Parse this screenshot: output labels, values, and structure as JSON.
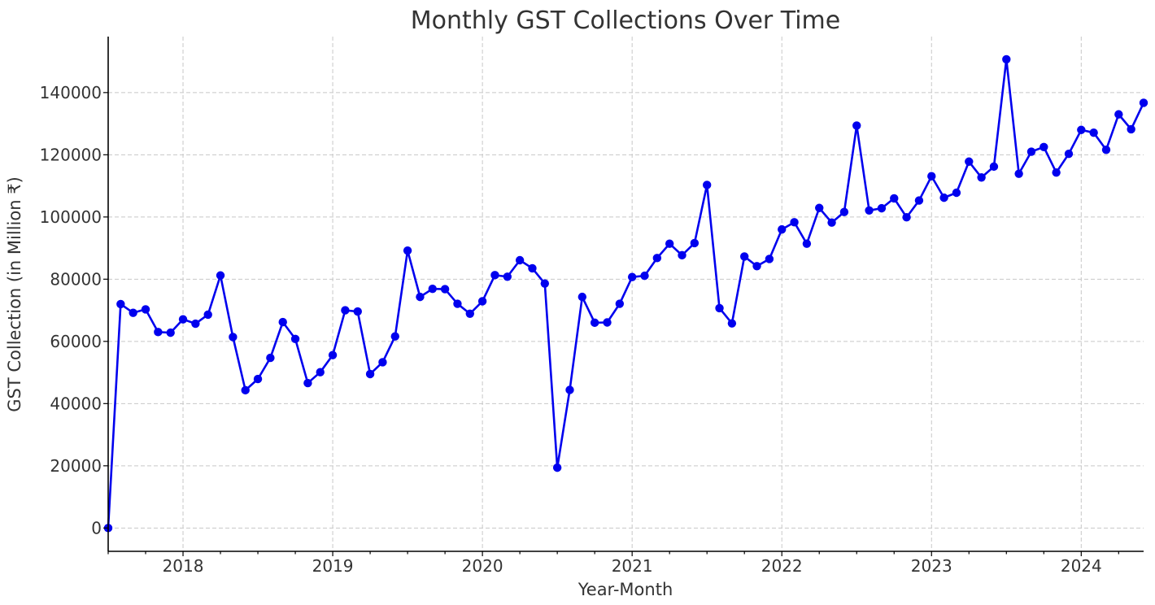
{
  "chart_data": {
    "type": "line",
    "title": "Monthly GST Collections Over Time",
    "xlabel": "Year-Month",
    "ylabel": "GST Collection (in Million ₹)",
    "x_range": [
      "2017-07",
      "2024-06"
    ],
    "ylim": [
      -7500,
      158000
    ],
    "y_ticks": [
      "0",
      "20000",
      "40000",
      "60000",
      "80000",
      "100000",
      "120000",
      "140000"
    ],
    "x_ticks": [
      "2018",
      "2019",
      "2020",
      "2021",
      "2022",
      "2023",
      "2024"
    ],
    "grid": true,
    "marker": "circle",
    "color": "#0000ee",
    "series": [
      {
        "x": [
          "2017-07",
          "2017-08",
          "2017-09",
          "2017-10",
          "2017-11",
          "2017-12",
          "2018-01",
          "2018-02",
          "2018-03",
          "2018-04",
          "2018-05",
          "2018-06",
          "2018-07",
          "2018-08",
          "2018-09",
          "2018-10",
          "2018-11",
          "2018-12",
          "2019-01",
          "2019-02",
          "2019-03",
          "2019-04",
          "2019-05",
          "2019-06",
          "2019-07",
          "2019-08",
          "2019-09",
          "2019-10",
          "2019-11",
          "2019-12",
          "2020-01",
          "2020-02",
          "2020-03",
          "2020-04",
          "2020-05",
          "2020-06",
          "2020-07",
          "2020-08",
          "2020-09",
          "2020-10",
          "2020-11",
          "2020-12",
          "2021-01",
          "2021-02",
          "2021-03",
          "2021-04",
          "2021-05",
          "2021-06",
          "2021-07",
          "2021-08",
          "2021-09",
          "2021-10",
          "2021-11",
          "2021-12",
          "2022-01",
          "2022-02",
          "2022-03",
          "2022-04",
          "2022-05",
          "2022-06",
          "2022-07",
          "2022-08",
          "2022-09",
          "2022-10",
          "2022-11",
          "2022-12",
          "2023-01",
          "2023-02",
          "2023-03",
          "2023-04",
          "2023-05",
          "2023-06",
          "2023-07",
          "2023-08",
          "2023-09",
          "2023-10",
          "2023-11",
          "2023-12",
          "2024-01",
          "2024-02",
          "2024-03",
          "2024-04",
          "2024-05",
          "2024-06"
        ],
        "y": [
          0,
          72000,
          69200,
          70300,
          63000,
          62800,
          67100,
          65700,
          68600,
          81200,
          61400,
          44300,
          47900,
          54700,
          66200,
          60800,
          46600,
          50100,
          55600,
          70000,
          69600,
          49500,
          53300,
          61600,
          89200,
          74300,
          76900,
          76800,
          72100,
          68900,
          72900,
          81300,
          80800,
          86100,
          83500,
          78600,
          19400,
          44400,
          74300,
          66000,
          66100,
          72100,
          80700,
          81100,
          86800,
          91400,
          87700,
          91600,
          110300,
          70700,
          65800,
          87300,
          84200,
          86500,
          96000,
          98300,
          91400,
          102900,
          98200,
          101600,
          129400,
          102100,
          102800,
          106000,
          99900,
          105300,
          113100,
          106200,
          107800,
          117800,
          112700,
          116200,
          150700,
          113900,
          121000,
          122500,
          114300,
          120300,
          128000,
          127100,
          121600,
          133000,
          128200,
          136700
        ]
      }
    ]
  }
}
